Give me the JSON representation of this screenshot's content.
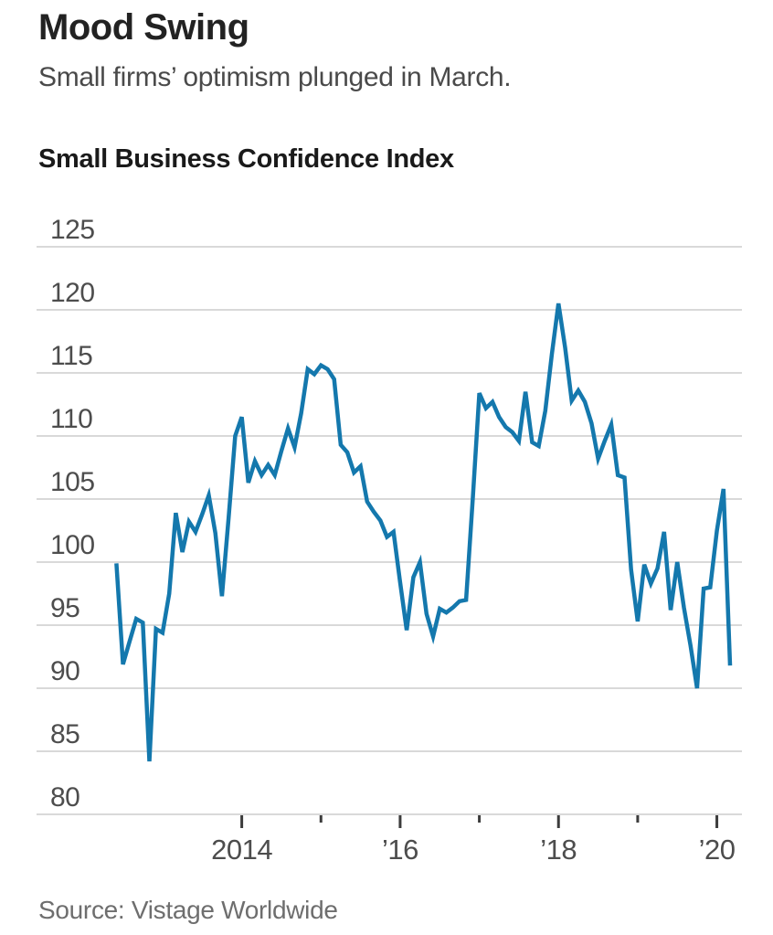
{
  "header": {
    "title": "Mood Swing",
    "subtitle": "Small firms’ optimism plunged in March."
  },
  "source": {
    "text": "Source: Vistage Worldwide"
  },
  "colors": {
    "line": "#1478ad",
    "grid": "#d9d9d9",
    "tick": "#3c3c3c",
    "axis_label": "#4d4d4d"
  },
  "chart_data": {
    "type": "line",
    "title": "Small Business Confidence Index",
    "xlabel": "",
    "ylabel": "",
    "ylim": [
      80,
      125
    ],
    "y_ticks": [
      80,
      85,
      90,
      95,
      100,
      105,
      110,
      115,
      120,
      125
    ],
    "grid": "horizontal",
    "legend_position": "none",
    "x_start_month": "2012-06",
    "x_end_month": "2020-03",
    "x_major_ticks": [
      {
        "year": 2014,
        "label": "2014"
      },
      {
        "year": 2016,
        "label": "’16"
      },
      {
        "year": 2018,
        "label": "’18"
      },
      {
        "year": 2020,
        "label": "’20"
      }
    ],
    "x_minor_tick_years": [
      2015,
      2017,
      2019
    ],
    "series": [
      {
        "name": "Small Business Confidence Index",
        "frequency": "monthly",
        "values": [
          99.9,
          91.9,
          93.7,
          95.5,
          95.2,
          84.2,
          94.7,
          94.4,
          97.5,
          103.9,
          100.8,
          103.2,
          102.4,
          103.8,
          105.3,
          102.3,
          97.3,
          103.5,
          110.0,
          111.5,
          106.3,
          108.0,
          106.9,
          107.7,
          106.9,
          108.8,
          110.6,
          109.1,
          111.8,
          115.3,
          114.9,
          115.6,
          115.3,
          114.5,
          109.3,
          108.7,
          107.1,
          107.6,
          104.8,
          104.0,
          103.3,
          102.0,
          102.4,
          98.4,
          94.6,
          98.8,
          100.0,
          95.9,
          94.1,
          96.3,
          96.0,
          96.4,
          96.9,
          97.0,
          105.0,
          113.4,
          112.2,
          112.7,
          111.5,
          110.7,
          110.3,
          109.6,
          113.5,
          109.5,
          109.2,
          112.0,
          116.5,
          120.5,
          117.0,
          112.8,
          113.6,
          112.7,
          111.0,
          108.2,
          109.6,
          110.9,
          106.9,
          106.7,
          99.4,
          95.3,
          99.8,
          98.3,
          99.5,
          102.4,
          96.2,
          100.0,
          96.4,
          93.4,
          90.0,
          97.9,
          98.0,
          102.5,
          105.8,
          91.8
        ]
      }
    ]
  }
}
